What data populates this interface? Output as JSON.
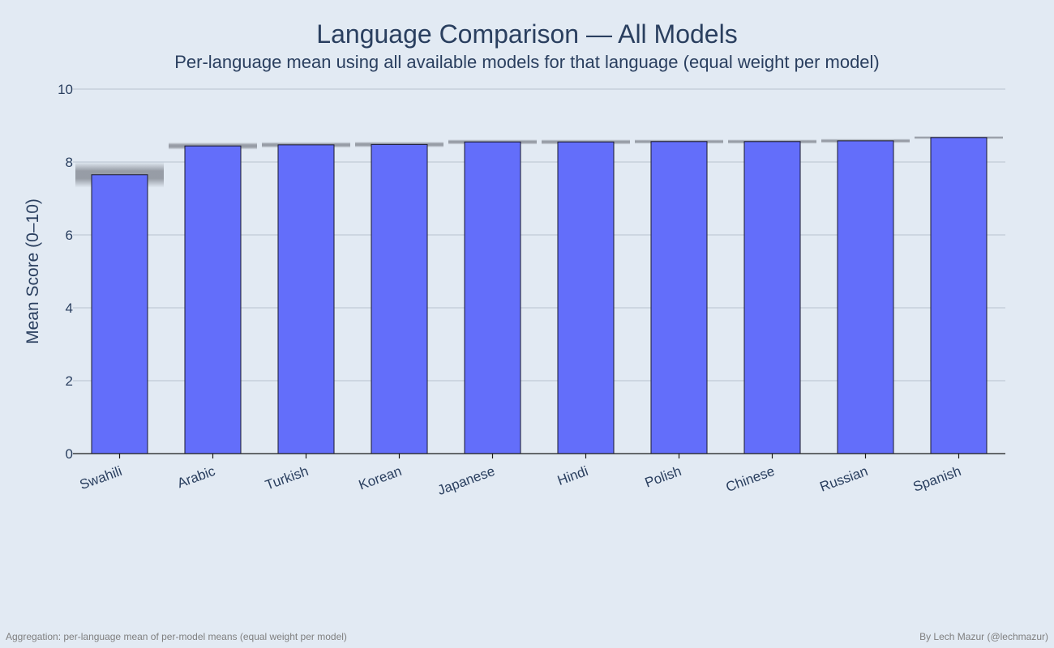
{
  "chart_data": {
    "type": "bar",
    "title": "Language Comparison — All Models",
    "subtitle": "Per-language mean using all available models for that language (equal weight per model)",
    "xlabel": "",
    "ylabel": "Mean Score (0–10)",
    "ylim": [
      0,
      10
    ],
    "yticks": [
      "0",
      "2",
      "4",
      "6",
      "8",
      "10"
    ],
    "grid": true,
    "categories": [
      "Swahili",
      "Arabic",
      "Turkish",
      "Korean",
      "Japanese",
      "Hindi",
      "Polish",
      "Chinese",
      "Russian",
      "Spanish"
    ],
    "values": [
      7.65,
      8.44,
      8.47,
      8.48,
      8.55,
      8.55,
      8.56,
      8.56,
      8.58,
      8.67
    ],
    "error_band": [
      0.35,
      0.1,
      0.08,
      0.08,
      0.07,
      0.07,
      0.06,
      0.06,
      0.06,
      0.04
    ],
    "colors": {
      "bar": "#636efa",
      "bar_outline": "#1a1a2e",
      "band": "#8a8f98",
      "grid": "#b8c2cf",
      "background": "#e2eaf3"
    }
  },
  "footer": {
    "left": "Aggregation: per-language mean of per-model means (equal weight per model)",
    "right": "By Lech Mazur (@lechmazur)"
  }
}
